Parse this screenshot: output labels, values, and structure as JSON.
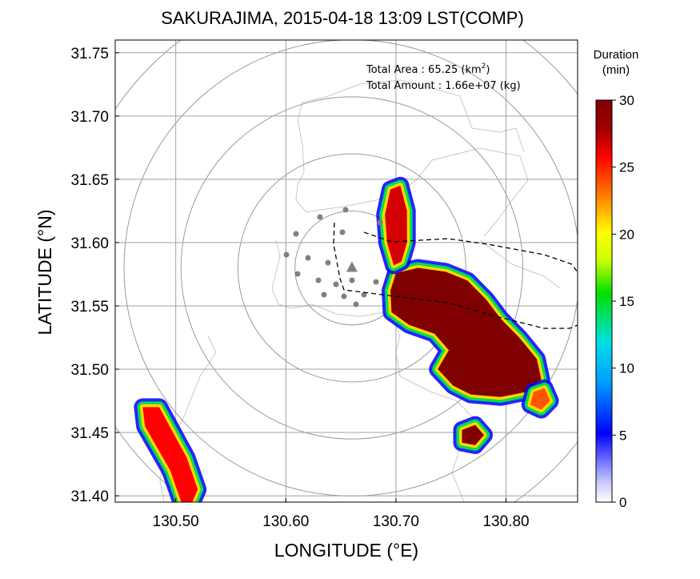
{
  "chart_data": {
    "type": "heatmap",
    "title": "SAKURAJIMA, 2015-04-18 13:09 LST(COMP)",
    "xlabel": "LONGITUDE (°E)",
    "ylabel": "LATITUDE (°N)",
    "xlim": [
      130.445,
      130.865
    ],
    "ylim": [
      31.395,
      31.76
    ],
    "xticks": [
      130.5,
      130.6,
      130.7,
      130.8
    ],
    "xtick_labels": [
      "130.50",
      "130.60",
      "130.70",
      "130.80"
    ],
    "yticks": [
      31.4,
      31.45,
      31.5,
      31.55,
      31.6,
      31.65,
      31.7,
      31.75
    ],
    "ytick_labels": [
      "31.40",
      "31.45",
      "31.50",
      "31.55",
      "31.60",
      "31.65",
      "31.70",
      "31.75"
    ],
    "grid": true,
    "colorbar": {
      "title_line1": "Duration",
      "title_line2": "(min)",
      "min": 0,
      "max": 30,
      "ticks": [
        0,
        5,
        10,
        15,
        20,
        25,
        30
      ],
      "tick_labels": [
        "0",
        "5",
        "10",
        "15",
        "20",
        "25",
        "30"
      ],
      "colors": [
        "#ffffff",
        "#c8c8ff",
        "#0000ff",
        "#00a0ff",
        "#00e0e0",
        "#00e000",
        "#c8ff00",
        "#ffff00",
        "#ff8000",
        "#ff0000",
        "#800000"
      ]
    },
    "annotation": {
      "area_label": "Total Area   : 65.25 (km",
      "area_sup": "2",
      "area_close": ")",
      "amount_label": "Total Amount : 1.66e+07 (kg)"
    },
    "volcano": {
      "lon": 130.66,
      "lat": 31.58
    },
    "range_rings_km": [
      5,
      10,
      15,
      20,
      25
    ],
    "deposit_regions": [
      {
        "name": "main-plume",
        "duration": 30,
        "polygon": [
          [
            130.7,
            31.576
          ],
          [
            130.72,
            31.58
          ],
          [
            130.745,
            31.577
          ],
          [
            130.765,
            31.57
          ],
          [
            130.782,
            31.555
          ],
          [
            130.795,
            31.54
          ],
          [
            130.812,
            31.525
          ],
          [
            130.828,
            31.508
          ],
          [
            130.832,
            31.492
          ],
          [
            130.818,
            31.482
          ],
          [
            130.795,
            31.478
          ],
          [
            130.768,
            31.48
          ],
          [
            130.752,
            31.487
          ],
          [
            130.738,
            31.5
          ],
          [
            130.748,
            31.515
          ],
          [
            130.735,
            31.528
          ],
          [
            130.712,
            31.535
          ],
          [
            130.696,
            31.545
          ],
          [
            130.695,
            31.562
          ]
        ]
      },
      {
        "name": "north-column",
        "duration": 28,
        "polygon": [
          [
            130.695,
            31.642
          ],
          [
            130.704,
            31.645
          ],
          [
            130.71,
            31.625
          ],
          [
            130.71,
            31.6
          ],
          [
            130.705,
            31.585
          ],
          [
            130.698,
            31.582
          ],
          [
            130.692,
            31.6
          ],
          [
            130.69,
            31.622
          ]
        ]
      },
      {
        "name": "south-cell",
        "duration": 30,
        "polygon": [
          [
            130.76,
            31.452
          ],
          [
            130.772,
            31.456
          ],
          [
            130.78,
            31.448
          ],
          [
            130.772,
            31.44
          ],
          [
            130.76,
            31.442
          ]
        ]
      },
      {
        "name": "east-cell",
        "duration": 25,
        "polygon": [
          [
            130.825,
            31.482
          ],
          [
            130.835,
            31.485
          ],
          [
            130.84,
            31.475
          ],
          [
            130.832,
            31.468
          ],
          [
            130.822,
            31.472
          ]
        ]
      },
      {
        "name": "southwest-band",
        "duration": 27,
        "polygon": [
          [
            130.47,
            31.47
          ],
          [
            130.485,
            31.47
          ],
          [
            130.51,
            31.43
          ],
          [
            130.52,
            31.405
          ],
          [
            130.515,
            31.395
          ],
          [
            130.505,
            31.395
          ],
          [
            130.495,
            31.42
          ],
          [
            130.472,
            31.455
          ]
        ]
      }
    ]
  }
}
